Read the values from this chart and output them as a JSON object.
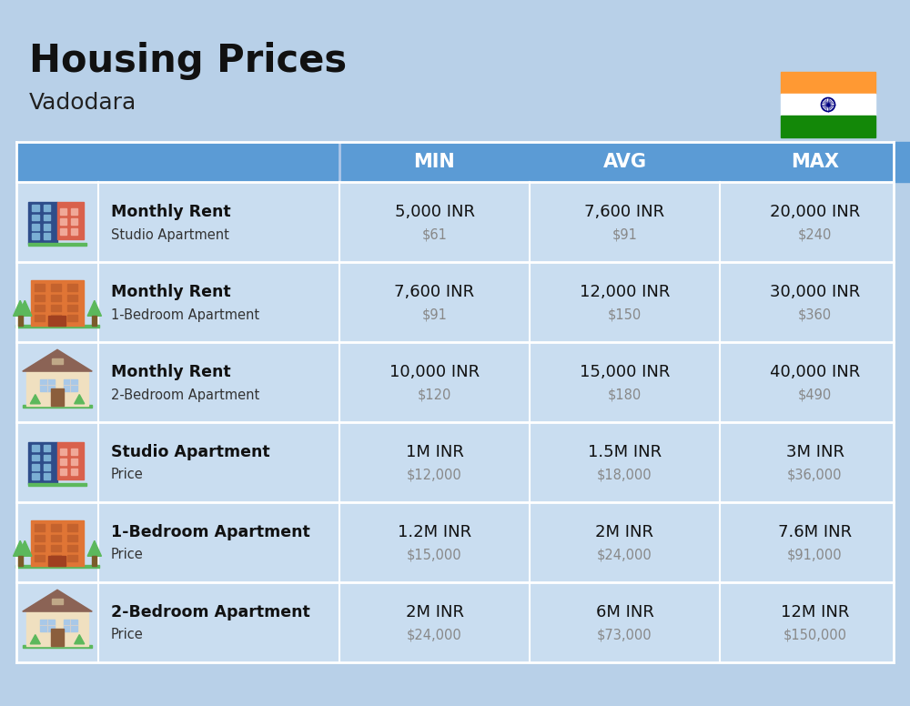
{
  "title": "Housing Prices",
  "subtitle": "Vadodara",
  "bg_color": "#b8d0e8",
  "header_bg": "#5b9bd5",
  "header_text_color": "#ffffff",
  "row_bg": "#c9ddf0",
  "divider_color": "#ffffff",
  "columns": [
    "MIN",
    "AVG",
    "MAX"
  ],
  "rows": [
    {
      "label_bold": "Monthly Rent",
      "label_sub": "Studio Apartment",
      "min_main": "5,000 INR",
      "min_sub": "$61",
      "avg_main": "7,600 INR",
      "avg_sub": "$91",
      "max_main": "20,000 INR",
      "max_sub": "$240",
      "icon_type": "studio_blue_red"
    },
    {
      "label_bold": "Monthly Rent",
      "label_sub": "1-Bedroom Apartment",
      "min_main": "7,600 INR",
      "min_sub": "$91",
      "avg_main": "12,000 INR",
      "avg_sub": "$150",
      "max_main": "30,000 INR",
      "max_sub": "$360",
      "icon_type": "apartment_orange"
    },
    {
      "label_bold": "Monthly Rent",
      "label_sub": "2-Bedroom Apartment",
      "min_main": "10,000 INR",
      "min_sub": "$120",
      "avg_main": "15,000 INR",
      "avg_sub": "$180",
      "max_main": "40,000 INR",
      "max_sub": "$490",
      "icon_type": "house_beige"
    },
    {
      "label_bold": "Studio Apartment",
      "label_sub": "Price",
      "min_main": "1M INR",
      "min_sub": "$12,000",
      "avg_main": "1.5M INR",
      "avg_sub": "$18,000",
      "max_main": "3M INR",
      "max_sub": "$36,000",
      "icon_type": "studio_blue_red"
    },
    {
      "label_bold": "1-Bedroom Apartment",
      "label_sub": "Price",
      "min_main": "1.2M INR",
      "min_sub": "$15,000",
      "avg_main": "2M INR",
      "avg_sub": "$24,000",
      "max_main": "7.6M INR",
      "max_sub": "$91,000",
      "icon_type": "apartment_orange"
    },
    {
      "label_bold": "2-Bedroom Apartment",
      "label_sub": "Price",
      "min_main": "2M INR",
      "min_sub": "$24,000",
      "avg_main": "6M INR",
      "avg_sub": "$73,000",
      "max_main": "12M INR",
      "max_sub": "$150,000",
      "icon_type": "house_beige"
    }
  ]
}
